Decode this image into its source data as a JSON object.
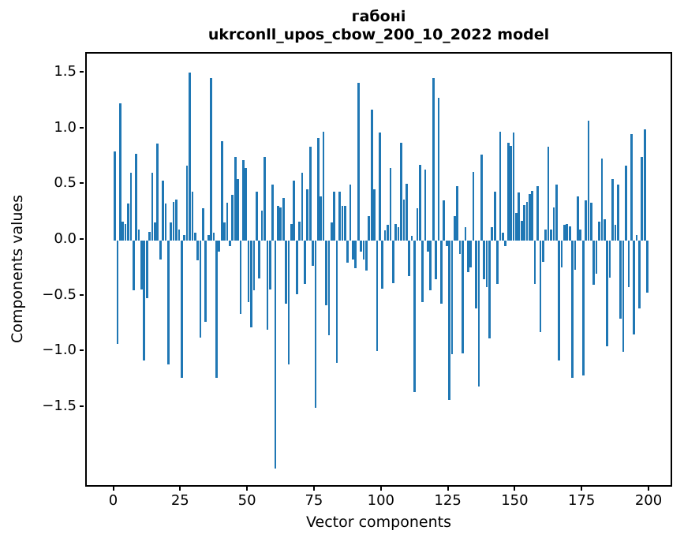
{
  "figure": {
    "background": "#ffffff",
    "text_color": "#000000"
  },
  "chart_data": {
    "type": "bar",
    "title_line1": "габоні",
    "title_line2": "ukrconll_upos_cbow_200_10_2022 model",
    "xlabel": "Vector components",
    "ylabel": "Components values",
    "bar_color": "#1f77b4",
    "grid": false,
    "legend": "none",
    "xlim": [
      -10.5,
      208.9
    ],
    "ylim": [
      -2.23,
      1.68
    ],
    "xticks": {
      "values": [
        0,
        25,
        50,
        75,
        100,
        125,
        150,
        175,
        200
      ],
      "labels": [
        "0",
        "25",
        "50",
        "75",
        "100",
        "125",
        "150",
        "175",
        "200"
      ]
    },
    "yticks": {
      "values": [
        -1.5,
        -1.0,
        -0.5,
        0.0,
        0.5,
        1.0,
        1.5
      ],
      "labels": [
        "−1.5",
        "−1.0",
        "−0.5",
        "0.0",
        "0.5",
        "1.0",
        "1.5"
      ]
    },
    "x_start": 0,
    "values": [
      0.8,
      -0.93,
      1.23,
      0.17,
      0.15,
      0.33,
      0.61,
      -0.45,
      0.78,
      0.1,
      -0.44,
      -1.08,
      -0.52,
      0.08,
      0.61,
      0.16,
      0.87,
      -0.17,
      0.54,
      0.33,
      -1.11,
      0.16,
      0.35,
      0.37,
      0.1,
      -1.23,
      0.05,
      0.67,
      1.51,
      0.44,
      0.07,
      -0.18,
      -0.87,
      0.29,
      -0.73,
      0.05,
      1.46,
      0.07,
      -1.23,
      -0.1,
      0.89,
      0.16,
      0.34,
      -0.05,
      0.41,
      0.75,
      0.55,
      -0.66,
      0.72,
      0.65,
      -0.55,
      -0.78,
      -0.45,
      0.44,
      -0.34,
      0.27,
      0.75,
      -0.8,
      -0.44,
      0.5,
      -2.05,
      0.31,
      0.3,
      0.38,
      -0.57,
      -1.11,
      0.15,
      0.54,
      -0.48,
      0.17,
      0.61,
      -0.39,
      0.46,
      0.84,
      -0.23,
      -1.5,
      0.92,
      0.4,
      0.98,
      -0.58,
      -0.85,
      0.16,
      0.44,
      -1.1,
      0.44,
      0.31,
      0.31,
      -0.2,
      0.5,
      -0.17,
      -0.25,
      1.42,
      -0.1,
      -0.17,
      -0.27,
      0.22,
      1.18,
      0.46,
      -0.99,
      0.97,
      -0.43,
      0.09,
      0.14,
      0.65,
      -0.38,
      0.15,
      0.12,
      0.88,
      0.37,
      0.51,
      -0.32,
      0.04,
      -1.36,
      0.29,
      0.68,
      -0.55,
      0.64,
      -0.1,
      -0.45,
      1.46,
      -0.35,
      1.28,
      -0.57,
      0.36,
      -0.05,
      -1.43,
      -1.02,
      0.22,
      0.49,
      -0.12,
      -1.01,
      0.12,
      -0.28,
      -0.24,
      0.62,
      -0.61,
      -1.31,
      0.77,
      -0.35,
      -0.42,
      -0.88,
      0.12,
      0.44,
      -0.39,
      0.98,
      0.07,
      -0.05,
      0.88,
      0.85,
      0.97,
      0.25,
      0.43,
      0.18,
      0.32,
      0.35,
      0.42,
      0.45,
      -0.39,
      0.49,
      -0.82,
      -0.19,
      0.1,
      0.84,
      0.1,
      0.3,
      0.5,
      -1.08,
      -0.24,
      0.14,
      0.15,
      0.13,
      -1.23,
      -0.26,
      0.4,
      0.1,
      -1.21,
      0.36,
      1.08,
      0.34,
      -0.4,
      -0.3,
      0.17,
      0.74,
      0.19,
      -0.95,
      -0.33,
      0.55,
      0.14,
      0.5,
      -0.7,
      -1.0,
      0.67,
      -0.42,
      0.96,
      -0.84,
      0.05,
      -0.61,
      0.75,
      1.0,
      -0.47
    ]
  }
}
